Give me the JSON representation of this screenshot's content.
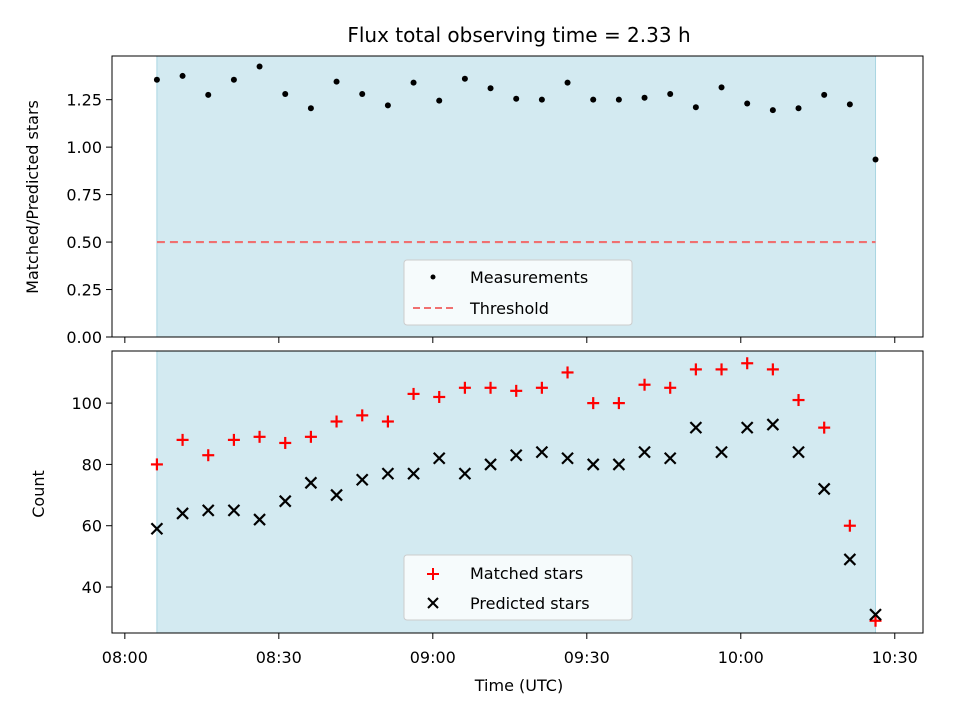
{
  "chart_data": [
    {
      "type": "scatter",
      "title": "Flux total observing time = 2.33 h",
      "xlabel": "",
      "ylabel": "Matched/Predicted stars",
      "x_unit": "minutes after 08:00 UTC",
      "xlim": [
        -0.5,
        31.1
      ],
      "ylim": [
        0,
        1.48
      ],
      "yticks": [
        "0.00",
        "0.25",
        "0.50",
        "0.75",
        "1.00",
        "1.25"
      ],
      "ytick_values": [
        0,
        0.25,
        0.5,
        0.75,
        1.0,
        1.25
      ],
      "shaded_range": [
        1.25,
        29.25
      ],
      "series": [
        {
          "name": "Measurements",
          "marker": "dot",
          "color": "#000000",
          "x": [
            1.25,
            2.25,
            3.25,
            4.25,
            5.25,
            6.25,
            7.25,
            8.25,
            9.25,
            10.25,
            11.25,
            12.25,
            13.25,
            14.25,
            15.25,
            16.25,
            17.25,
            18.25,
            19.25,
            20.25,
            21.25,
            22.25,
            23.25,
            24.25,
            25.25,
            26.25,
            27.25,
            28.25,
            29.25
          ],
          "y": [
            1.355,
            1.375,
            1.275,
            1.355,
            1.425,
            1.28,
            1.205,
            1.345,
            1.28,
            1.22,
            1.34,
            1.245,
            1.36,
            1.31,
            1.255,
            1.25,
            1.34,
            1.25,
            1.25,
            1.26,
            1.28,
            1.21,
            1.315,
            1.23,
            1.195,
            1.205,
            1.275,
            1.225,
            0.935
          ]
        },
        {
          "name": "Threshold",
          "marker": "dashed-line",
          "color": "#f07070",
          "x": [
            1.25,
            29.25
          ],
          "y": [
            0.5,
            0.5
          ]
        }
      ],
      "legend": "lower center"
    },
    {
      "type": "scatter",
      "xlabel": "Time (UTC)",
      "ylabel": "Count",
      "x_unit": "minutes after 08:00 UTC",
      "xlim": [
        -0.5,
        31.1
      ],
      "ylim": [
        25,
        117
      ],
      "xticks": [
        "08:00",
        "08:30",
        "09:00",
        "09:30",
        "10:00",
        "10:30"
      ],
      "xtick_values": [
        0,
        6,
        12,
        18,
        24,
        30
      ],
      "yticks": [
        "40",
        "60",
        "80",
        "100"
      ],
      "ytick_values": [
        40,
        60,
        80,
        100
      ],
      "shaded_range": [
        1.25,
        29.25
      ],
      "series": [
        {
          "name": "Matched stars",
          "marker": "plus",
          "color": "#ff0000",
          "x": [
            1.25,
            2.25,
            3.25,
            4.25,
            5.25,
            6.25,
            7.25,
            8.25,
            9.25,
            10.25,
            11.25,
            12.25,
            13.25,
            14.25,
            15.25,
            16.25,
            17.25,
            18.25,
            19.25,
            20.25,
            21.25,
            22.25,
            23.25,
            24.25,
            25.25,
            26.25,
            27.25,
            28.25,
            29.25
          ],
          "y": [
            80,
            88,
            83,
            88,
            89,
            87,
            89,
            94,
            96,
            94,
            103,
            102,
            105,
            105,
            104,
            105,
            110,
            100,
            100,
            106,
            105,
            111,
            111,
            113,
            111,
            101,
            92,
            60,
            29
          ]
        },
        {
          "name": "Predicted stars",
          "marker": "x",
          "color": "#000000",
          "x": [
            1.25,
            2.25,
            3.25,
            4.25,
            5.25,
            6.25,
            7.25,
            8.25,
            9.25,
            10.25,
            11.25,
            12.25,
            13.25,
            14.25,
            15.25,
            16.25,
            17.25,
            18.25,
            19.25,
            20.25,
            21.25,
            22.25,
            23.25,
            24.25,
            25.25,
            26.25,
            27.25,
            28.25,
            29.25
          ],
          "y": [
            59,
            64,
            65,
            65,
            62,
            68,
            74,
            70,
            75,
            77,
            77,
            82,
            77,
            80,
            83,
            84,
            82,
            80,
            80,
            84,
            82,
            92,
            84,
            92,
            93,
            84,
            72,
            49,
            31
          ]
        }
      ],
      "legend": "lower center"
    }
  ],
  "colors": {
    "shade": "#d3eaf1",
    "shade_edge": "#a9d5e2"
  }
}
